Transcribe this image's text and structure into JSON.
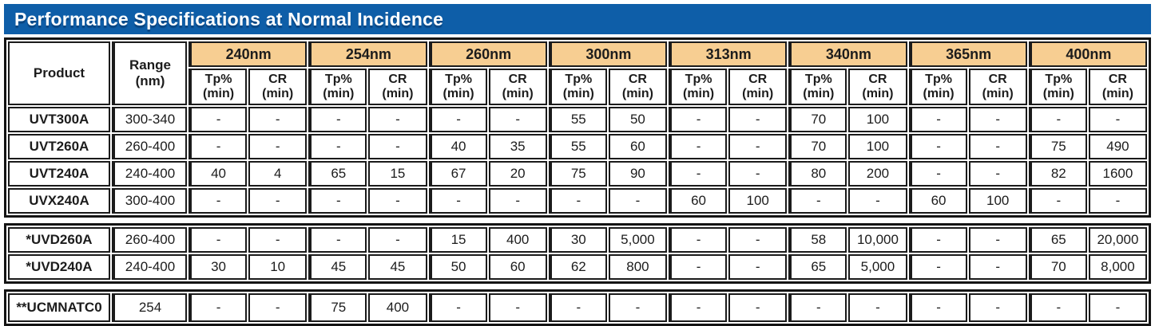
{
  "title": "Performance Specifications at Normal Incidence",
  "colors": {
    "banner_blue": "#0E5EA8",
    "header_orange": "#F7CE92",
    "border_black": "#1B1B1B",
    "title_text": "#FFFFFF"
  },
  "table": {
    "product_header": "Product",
    "range_header_line1": "Range",
    "range_header_line2": "(nm)",
    "wavelengths": [
      "240nm",
      "254nm",
      "260nm",
      "300nm",
      "313nm",
      "340nm",
      "365nm",
      "400nm"
    ],
    "sub": {
      "tp": "Tp%",
      "cr": "CR",
      "min": "(min)"
    },
    "sections": [
      {
        "rows": [
          {
            "product": "UVT300A",
            "range": "300-340",
            "values": [
              "-",
              "-",
              "-",
              "-",
              "-",
              "-",
              "55",
              "50",
              "-",
              "-",
              "70",
              "100",
              "-",
              "-",
              "-",
              "-"
            ]
          },
          {
            "product": "UVT260A",
            "range": "260-400",
            "values": [
              "-",
              "-",
              "-",
              "-",
              "40",
              "35",
              "55",
              "60",
              "-",
              "-",
              "70",
              "100",
              "-",
              "-",
              "75",
              "490"
            ]
          },
          {
            "product": "UVT240A",
            "range": "240-400",
            "values": [
              "40",
              "4",
              "65",
              "15",
              "67",
              "20",
              "75",
              "90",
              "-",
              "-",
              "80",
              "200",
              "-",
              "-",
              "82",
              "1600"
            ]
          },
          {
            "product": "UVX240A",
            "range": "300-400",
            "values": [
              "-",
              "-",
              "-",
              "-",
              "-",
              "-",
              "-",
              "-",
              "60",
              "100",
              "-",
              "-",
              "60",
              "100",
              "-",
              "-"
            ]
          }
        ]
      },
      {
        "rows": [
          {
            "product": "*UVD260A",
            "range": "260-400",
            "values": [
              "-",
              "-",
              "-",
              "-",
              "15",
              "400",
              "30",
              "5,000",
              "-",
              "-",
              "58",
              "10,000",
              "-",
              "-",
              "65",
              "20,000"
            ]
          },
          {
            "product": "*UVD240A",
            "range": "240-400",
            "values": [
              "30",
              "10",
              "45",
              "45",
              "50",
              "60",
              "62",
              "800",
              "-",
              "-",
              "65",
              "5,000",
              "-",
              "-",
              "70",
              "8,000"
            ]
          }
        ]
      },
      {
        "rows": [
          {
            "product": "**UCMNATC0",
            "range": "254",
            "values": [
              "-",
              "-",
              "75",
              "400",
              "-",
              "-",
              "-",
              "-",
              "-",
              "-",
              "-",
              "-",
              "-",
              "-",
              "-",
              "-"
            ]
          }
        ]
      }
    ]
  }
}
